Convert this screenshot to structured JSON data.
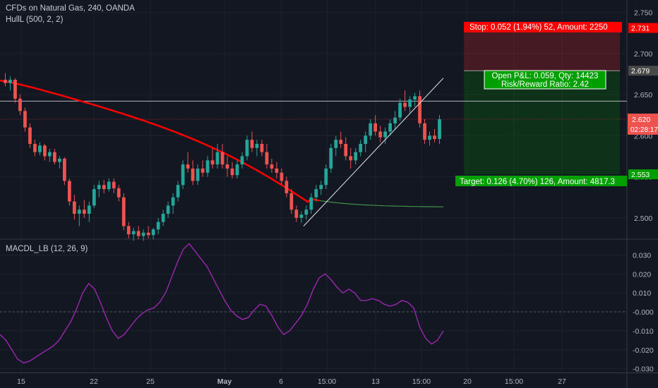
{
  "header": {
    "symbol_line": "CFDs on Natural Gas, 240, OANDA",
    "indicator": "HullL (500, 2, 2)"
  },
  "panel2": {
    "title": "MACDL_LB (12, 26, 9)"
  },
  "position": {
    "stop_label": "Stop: 0.052 (1.94%) 52, Amount: 2250",
    "pnl_label": "Open P&L: 0.059, Qty: 14423",
    "ratio_label": "Risk/Reward Ratio: 2.42",
    "target_label": "Target: 0.126 (4.70%) 126, Amount: 4817.3"
  },
  "price_tags": {
    "stop": "2.731",
    "entry": "2.679",
    "current": "2.620",
    "countdown": "02:28:17",
    "target": "2.553"
  },
  "colors": {
    "background": "#131722",
    "up": "#26a69a",
    "down": "#ef5350",
    "hull_down": "#ff0000",
    "hull_up": "#4caf50",
    "macd": "#9c27b0",
    "stop_tag": "#ff0000",
    "target_tag": "#00a000",
    "pnl_tag": "#00a000",
    "entry_tag": "#4a4a4a"
  },
  "chart_data": [
    {
      "type": "candlestick",
      "title": "CFDs on Natural Gas, 240, OANDA",
      "ylim": [
        2.475,
        2.765
      ],
      "y_ticks": [
        "2.500",
        "2.550",
        "2.600",
        "2.650",
        "2.700",
        "2.750"
      ],
      "x_ticks": [
        "15",
        "22",
        "25",
        "May",
        "6",
        "15:00",
        "13",
        "15:00",
        "20",
        "15:00",
        "27"
      ],
      "candles_ohlc": [
        [
          2.668,
          2.676,
          2.66,
          2.664
        ],
        [
          2.664,
          2.672,
          2.655,
          2.668
        ],
        [
          2.668,
          2.67,
          2.64,
          2.645
        ],
        [
          2.645,
          2.65,
          2.625,
          2.63
        ],
        [
          2.63,
          2.634,
          2.605,
          2.61
        ],
        [
          2.61,
          2.615,
          2.585,
          2.59
        ],
        [
          2.59,
          2.595,
          2.575,
          2.58
        ],
        [
          2.58,
          2.592,
          2.576,
          2.588
        ],
        [
          2.588,
          2.59,
          2.57,
          2.575
        ],
        [
          2.575,
          2.584,
          2.568,
          2.58
        ],
        [
          2.58,
          2.584,
          2.565,
          2.568
        ],
        [
          2.568,
          2.575,
          2.56,
          2.572
        ],
        [
          2.572,
          2.574,
          2.54,
          2.545
        ],
        [
          2.545,
          2.548,
          2.515,
          2.52
        ],
        [
          2.52,
          2.528,
          2.498,
          2.505
        ],
        [
          2.505,
          2.515,
          2.49,
          2.51
        ],
        [
          2.51,
          2.522,
          2.5,
          2.505
        ],
        [
          2.505,
          2.52,
          2.495,
          2.515
        ],
        [
          2.515,
          2.54,
          2.512,
          2.535
        ],
        [
          2.535,
          2.545,
          2.525,
          2.54
        ],
        [
          2.54,
          2.546,
          2.53,
          2.535
        ],
        [
          2.535,
          2.548,
          2.532,
          2.544
        ],
        [
          2.544,
          2.548,
          2.53,
          2.536
        ],
        [
          2.536,
          2.54,
          2.52,
          2.525
        ],
        [
          2.525,
          2.53,
          2.485,
          2.49
        ],
        [
          2.49,
          2.495,
          2.475,
          2.48
        ],
        [
          2.48,
          2.488,
          2.472,
          2.484
        ],
        [
          2.484,
          2.49,
          2.474,
          2.478
        ],
        [
          2.478,
          2.486,
          2.472,
          2.482
        ],
        [
          2.482,
          2.49,
          2.475,
          2.479
        ],
        [
          2.479,
          2.488,
          2.474,
          2.486
        ],
        [
          2.486,
          2.5,
          2.48,
          2.495
        ],
        [
          2.495,
          2.51,
          2.49,
          2.505
        ],
        [
          2.505,
          2.52,
          2.5,
          2.515
        ],
        [
          2.515,
          2.53,
          2.505,
          2.525
        ],
        [
          2.525,
          2.545,
          2.52,
          2.54
        ],
        [
          2.54,
          2.57,
          2.535,
          2.565
        ],
        [
          2.565,
          2.58,
          2.555,
          2.56
        ],
        [
          2.56,
          2.57,
          2.54,
          2.545
        ],
        [
          2.545,
          2.565,
          2.54,
          2.56
        ],
        [
          2.56,
          2.57,
          2.55,
          2.555
        ],
        [
          2.555,
          2.575,
          2.55,
          2.57
        ],
        [
          2.57,
          2.585,
          2.56,
          2.565
        ],
        [
          2.565,
          2.59,
          2.56,
          2.58
        ],
        [
          2.58,
          2.59,
          2.56,
          2.565
        ],
        [
          2.565,
          2.575,
          2.55,
          2.56
        ],
        [
          2.56,
          2.568,
          2.548,
          2.552
        ],
        [
          2.552,
          2.57,
          2.548,
          2.565
        ],
        [
          2.565,
          2.58,
          2.56,
          2.575
        ],
        [
          2.575,
          2.6,
          2.57,
          2.595
        ],
        [
          2.595,
          2.605,
          2.58,
          2.585
        ],
        [
          2.585,
          2.595,
          2.575,
          2.59
        ],
        [
          2.59,
          2.595,
          2.575,
          2.58
        ],
        [
          2.58,
          2.59,
          2.56,
          2.565
        ],
        [
          2.565,
          2.572,
          2.555,
          2.56
        ],
        [
          2.56,
          2.568,
          2.548,
          2.555
        ],
        [
          2.555,
          2.56,
          2.54,
          2.545
        ],
        [
          2.545,
          2.55,
          2.525,
          2.53
        ],
        [
          2.53,
          2.535,
          2.505,
          2.51
        ],
        [
          2.51,
          2.515,
          2.495,
          2.5
        ],
        [
          2.5,
          2.508,
          2.494,
          2.504
        ],
        [
          2.504,
          2.515,
          2.498,
          2.51
        ],
        [
          2.51,
          2.53,
          2.505,
          2.525
        ],
        [
          2.525,
          2.54,
          2.52,
          2.535
        ],
        [
          2.535,
          2.545,
          2.528,
          2.54
        ],
        [
          2.54,
          2.565,
          2.535,
          2.56
        ],
        [
          2.56,
          2.59,
          2.555,
          2.585
        ],
        [
          2.585,
          2.6,
          2.575,
          2.595
        ],
        [
          2.595,
          2.605,
          2.585,
          2.59
        ],
        [
          2.59,
          2.598,
          2.57,
          2.575
        ],
        [
          2.575,
          2.585,
          2.56,
          2.57
        ],
        [
          2.57,
          2.585,
          2.565,
          2.58
        ],
        [
          2.58,
          2.595,
          2.575,
          2.59
        ],
        [
          2.59,
          2.605,
          2.58,
          2.6
        ],
        [
          2.6,
          2.62,
          2.595,
          2.615
        ],
        [
          2.615,
          2.625,
          2.6,
          2.605
        ],
        [
          2.605,
          2.612,
          2.592,
          2.598
        ],
        [
          2.598,
          2.61,
          2.59,
          2.605
        ],
        [
          2.605,
          2.62,
          2.6,
          2.615
        ],
        [
          2.615,
          2.63,
          2.608,
          2.622
        ],
        [
          2.622,
          2.645,
          2.618,
          2.64
        ],
        [
          2.64,
          2.655,
          2.63,
          2.635
        ],
        [
          2.635,
          2.648,
          2.628,
          2.644
        ],
        [
          2.644,
          2.652,
          2.635,
          2.648
        ],
        [
          2.648,
          2.655,
          2.61,
          2.615
        ],
        [
          2.615,
          2.62,
          2.59,
          2.595
        ],
        [
          2.595,
          2.605,
          2.588,
          2.6
        ],
        [
          2.6,
          2.608,
          2.592,
          2.596
        ],
        [
          2.596,
          2.625,
          2.59,
          2.62
        ]
      ]
    },
    {
      "type": "line",
      "title": "MACDL_LB (12, 26, 9)",
      "ylim": [
        -0.032,
        0.038
      ],
      "y_ticks": [
        "0.030",
        "0.020",
        "0.010",
        "-0.000",
        "-0.010",
        "-0.020",
        "-0.030"
      ],
      "values": [
        -0.012,
        -0.015,
        -0.02,
        -0.025,
        -0.027,
        -0.026,
        -0.024,
        -0.022,
        -0.02,
        -0.018,
        -0.015,
        -0.01,
        -0.005,
        0.002,
        0.01,
        0.015,
        0.012,
        0.005,
        -0.003,
        -0.01,
        -0.014,
        -0.012,
        -0.008,
        -0.004,
        -0.001,
        0.001,
        0.002,
        0.005,
        0.01,
        0.018,
        0.026,
        0.033,
        0.036,
        0.032,
        0.028,
        0.024,
        0.018,
        0.012,
        0.006,
        0.001,
        -0.002,
        -0.004,
        -0.003,
        0.001,
        0.004,
        0.003,
        -0.002,
        -0.008,
        -0.012,
        -0.01,
        -0.006,
        -0.002,
        0.004,
        0.012,
        0.018,
        0.02,
        0.017,
        0.013,
        0.01,
        0.012,
        0.01,
        0.006,
        0.006,
        0.007,
        0.006,
        0.004,
        0.003,
        0.004,
        0.006,
        0.005,
        0.002,
        -0.008,
        -0.014,
        -0.017,
        -0.015,
        -0.01
      ]
    }
  ]
}
